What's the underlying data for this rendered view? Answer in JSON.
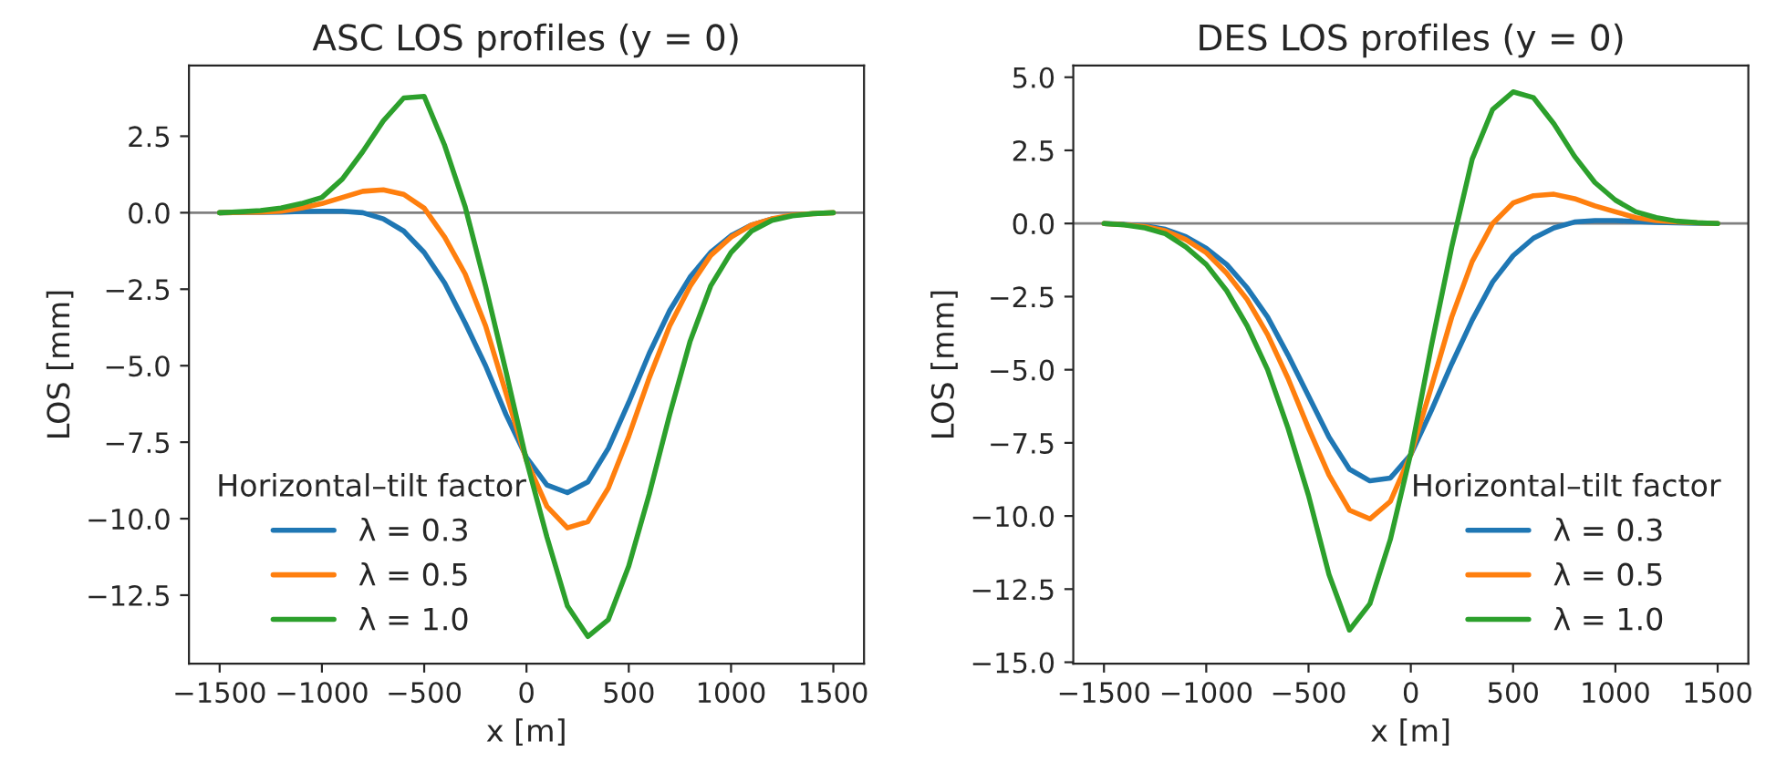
{
  "chart_data": [
    {
      "type": "line",
      "title": "ASC LOS profiles (y = 0)",
      "xlabel": "x [m]",
      "ylabel": "LOS [mm]",
      "legend_title": "Horizontal–tilt factor",
      "legend": "bottom left",
      "grid": false,
      "x": [
        -1500,
        -1400,
        -1300,
        -1200,
        -1100,
        -1000,
        -900,
        -800,
        -700,
        -600,
        -500,
        -400,
        -300,
        -200,
        -100,
        0,
        100,
        200,
        300,
        400,
        500,
        600,
        700,
        800,
        900,
        1000,
        1100,
        1200,
        1300,
        1400,
        1500
      ],
      "series": [
        {
          "name": "λ = 0.3",
          "color": "#1f77b4",
          "values": [
            0,
            0.01,
            0.01,
            0.02,
            0.04,
            0.05,
            0.05,
            0.0,
            -0.2,
            -0.6,
            -1.3,
            -2.3,
            -3.6,
            -5.0,
            -6.6,
            -8.0,
            -8.9,
            -9.15,
            -8.8,
            -7.7,
            -6.2,
            -4.6,
            -3.2,
            -2.1,
            -1.3,
            -0.75,
            -0.4,
            -0.2,
            null,
            null,
            null
          ]
        },
        {
          "name": "λ = 0.5",
          "color": "#ff7f0e",
          "values": [
            0,
            0.01,
            0.02,
            0.05,
            0.15,
            0.3,
            0.5,
            0.7,
            0.75,
            0.6,
            0.15,
            -0.8,
            -2.0,
            -3.7,
            -5.9,
            -8.1,
            -9.6,
            -10.3,
            -10.1,
            -9.0,
            -7.3,
            -5.4,
            -3.7,
            -2.4,
            -1.4,
            -0.8,
            -0.4,
            -0.2,
            -0.08,
            -0.03,
            0
          ]
        },
        {
          "name": "λ = 1.0",
          "color": "#2ca02c",
          "values": [
            0,
            0.03,
            0.07,
            0.15,
            0.3,
            0.5,
            1.1,
            2.0,
            3.0,
            3.75,
            3.8,
            2.2,
            0.2,
            -2.4,
            -5.2,
            -8.1,
            -10.6,
            -12.85,
            -13.85,
            -13.3,
            -11.55,
            -9.2,
            -6.6,
            -4.2,
            -2.4,
            -1.3,
            -0.6,
            -0.25,
            -0.1,
            -0.03,
            0
          ]
        }
      ],
      "ref_lines": [
        {
          "axis": "y",
          "value": 0,
          "color": "#808080"
        }
      ],
      "xlim": [
        -1650,
        1650
      ],
      "ylim": [
        -14.74,
        4.81
      ],
      "xticks": [
        {
          "value": -1500,
          "label": "−1500"
        },
        {
          "value": -1000,
          "label": "−1000"
        },
        {
          "value": -500,
          "label": "−500"
        },
        0,
        500,
        1000,
        1500
      ],
      "yticks": [
        {
          "value": -12.5,
          "label": "−12.5"
        },
        {
          "value": -10,
          "label": "−10.0"
        },
        {
          "value": -7.5,
          "label": "−7.5"
        },
        {
          "value": -5,
          "label": "−5.0"
        },
        {
          "value": -2.5,
          "label": "−2.5"
        },
        {
          "value": 0,
          "label": "0.0"
        },
        {
          "value": 2.5,
          "label": "2.5"
        }
      ]
    },
    {
      "type": "line",
      "title": "DES LOS profiles (y = 0)",
      "xlabel": "x [m]",
      "ylabel": "LOS [mm]",
      "legend_title": "Horizontal–tilt factor",
      "legend": "bottom right",
      "grid": false,
      "x": [
        -1500,
        -1400,
        -1300,
        -1200,
        -1100,
        -1000,
        -900,
        -800,
        -700,
        -600,
        -500,
        -400,
        -300,
        -200,
        -100,
        0,
        100,
        200,
        300,
        400,
        500,
        600,
        700,
        800,
        900,
        1000,
        1100,
        1200,
        1300,
        1400,
        1500
      ],
      "series": [
        {
          "name": "λ = 0.3",
          "color": "#1f77b4",
          "values": [
            0,
            -0.03,
            -0.08,
            -0.2,
            -0.45,
            -0.85,
            -1.4,
            -2.2,
            -3.2,
            -4.5,
            -5.9,
            -7.3,
            -8.4,
            -8.8,
            -8.7,
            -7.9,
            -6.4,
            -4.8,
            -3.3,
            -2.0,
            -1.1,
            -0.5,
            -0.15,
            0.05,
            0.1,
            0.1,
            0.07,
            0.04,
            0.02,
            0.01,
            0
          ]
        },
        {
          "name": "λ = 0.5",
          "color": "#ff7f0e",
          "values": [
            0,
            -0.04,
            -0.1,
            -0.25,
            -0.55,
            -1.0,
            -1.7,
            -2.6,
            -3.8,
            -5.3,
            -7.0,
            -8.6,
            -9.8,
            -10.1,
            -9.5,
            -7.9,
            -5.6,
            -3.2,
            -1.3,
            0.0,
            0.7,
            0.95,
            1.0,
            0.85,
            0.6,
            0.4,
            0.2,
            0.1,
            0.05,
            0.02,
            0
          ]
        },
        {
          "name": "λ = 1.0",
          "color": "#2ca02c",
          "values": [
            0,
            -0.05,
            -0.15,
            -0.35,
            -0.8,
            -1.4,
            -2.3,
            -3.5,
            -5.0,
            -7.0,
            -9.3,
            -12.0,
            -13.9,
            -13.0,
            -10.8,
            -7.85,
            -4.2,
            -0.8,
            2.2,
            3.9,
            4.5,
            4.3,
            3.4,
            2.3,
            1.4,
            0.8,
            0.4,
            0.2,
            0.08,
            0.03,
            0
          ]
        }
      ],
      "ref_lines": [
        {
          "axis": "y",
          "value": 0,
          "color": "#808080"
        }
      ],
      "xlim": [
        -1650,
        1650
      ],
      "ylim": [
        -15.05,
        5.4
      ],
      "xticks": [
        {
          "value": -1500,
          "label": "−1500"
        },
        {
          "value": -1000,
          "label": "−1000"
        },
        {
          "value": -500,
          "label": "−500"
        },
        0,
        500,
        1000,
        1500
      ],
      "yticks": [
        {
          "value": -15,
          "label": "−15.0"
        },
        {
          "value": -12.5,
          "label": "−12.5"
        },
        {
          "value": -10,
          "label": "−10.0"
        },
        {
          "value": -7.5,
          "label": "−7.5"
        },
        {
          "value": -5,
          "label": "−5.0"
        },
        {
          "value": -2.5,
          "label": "−2.5"
        },
        {
          "value": 0,
          "label": "0.0"
        },
        {
          "value": 2.5,
          "label": "2.5"
        },
        {
          "value": 5,
          "label": "5.0"
        }
      ]
    }
  ]
}
